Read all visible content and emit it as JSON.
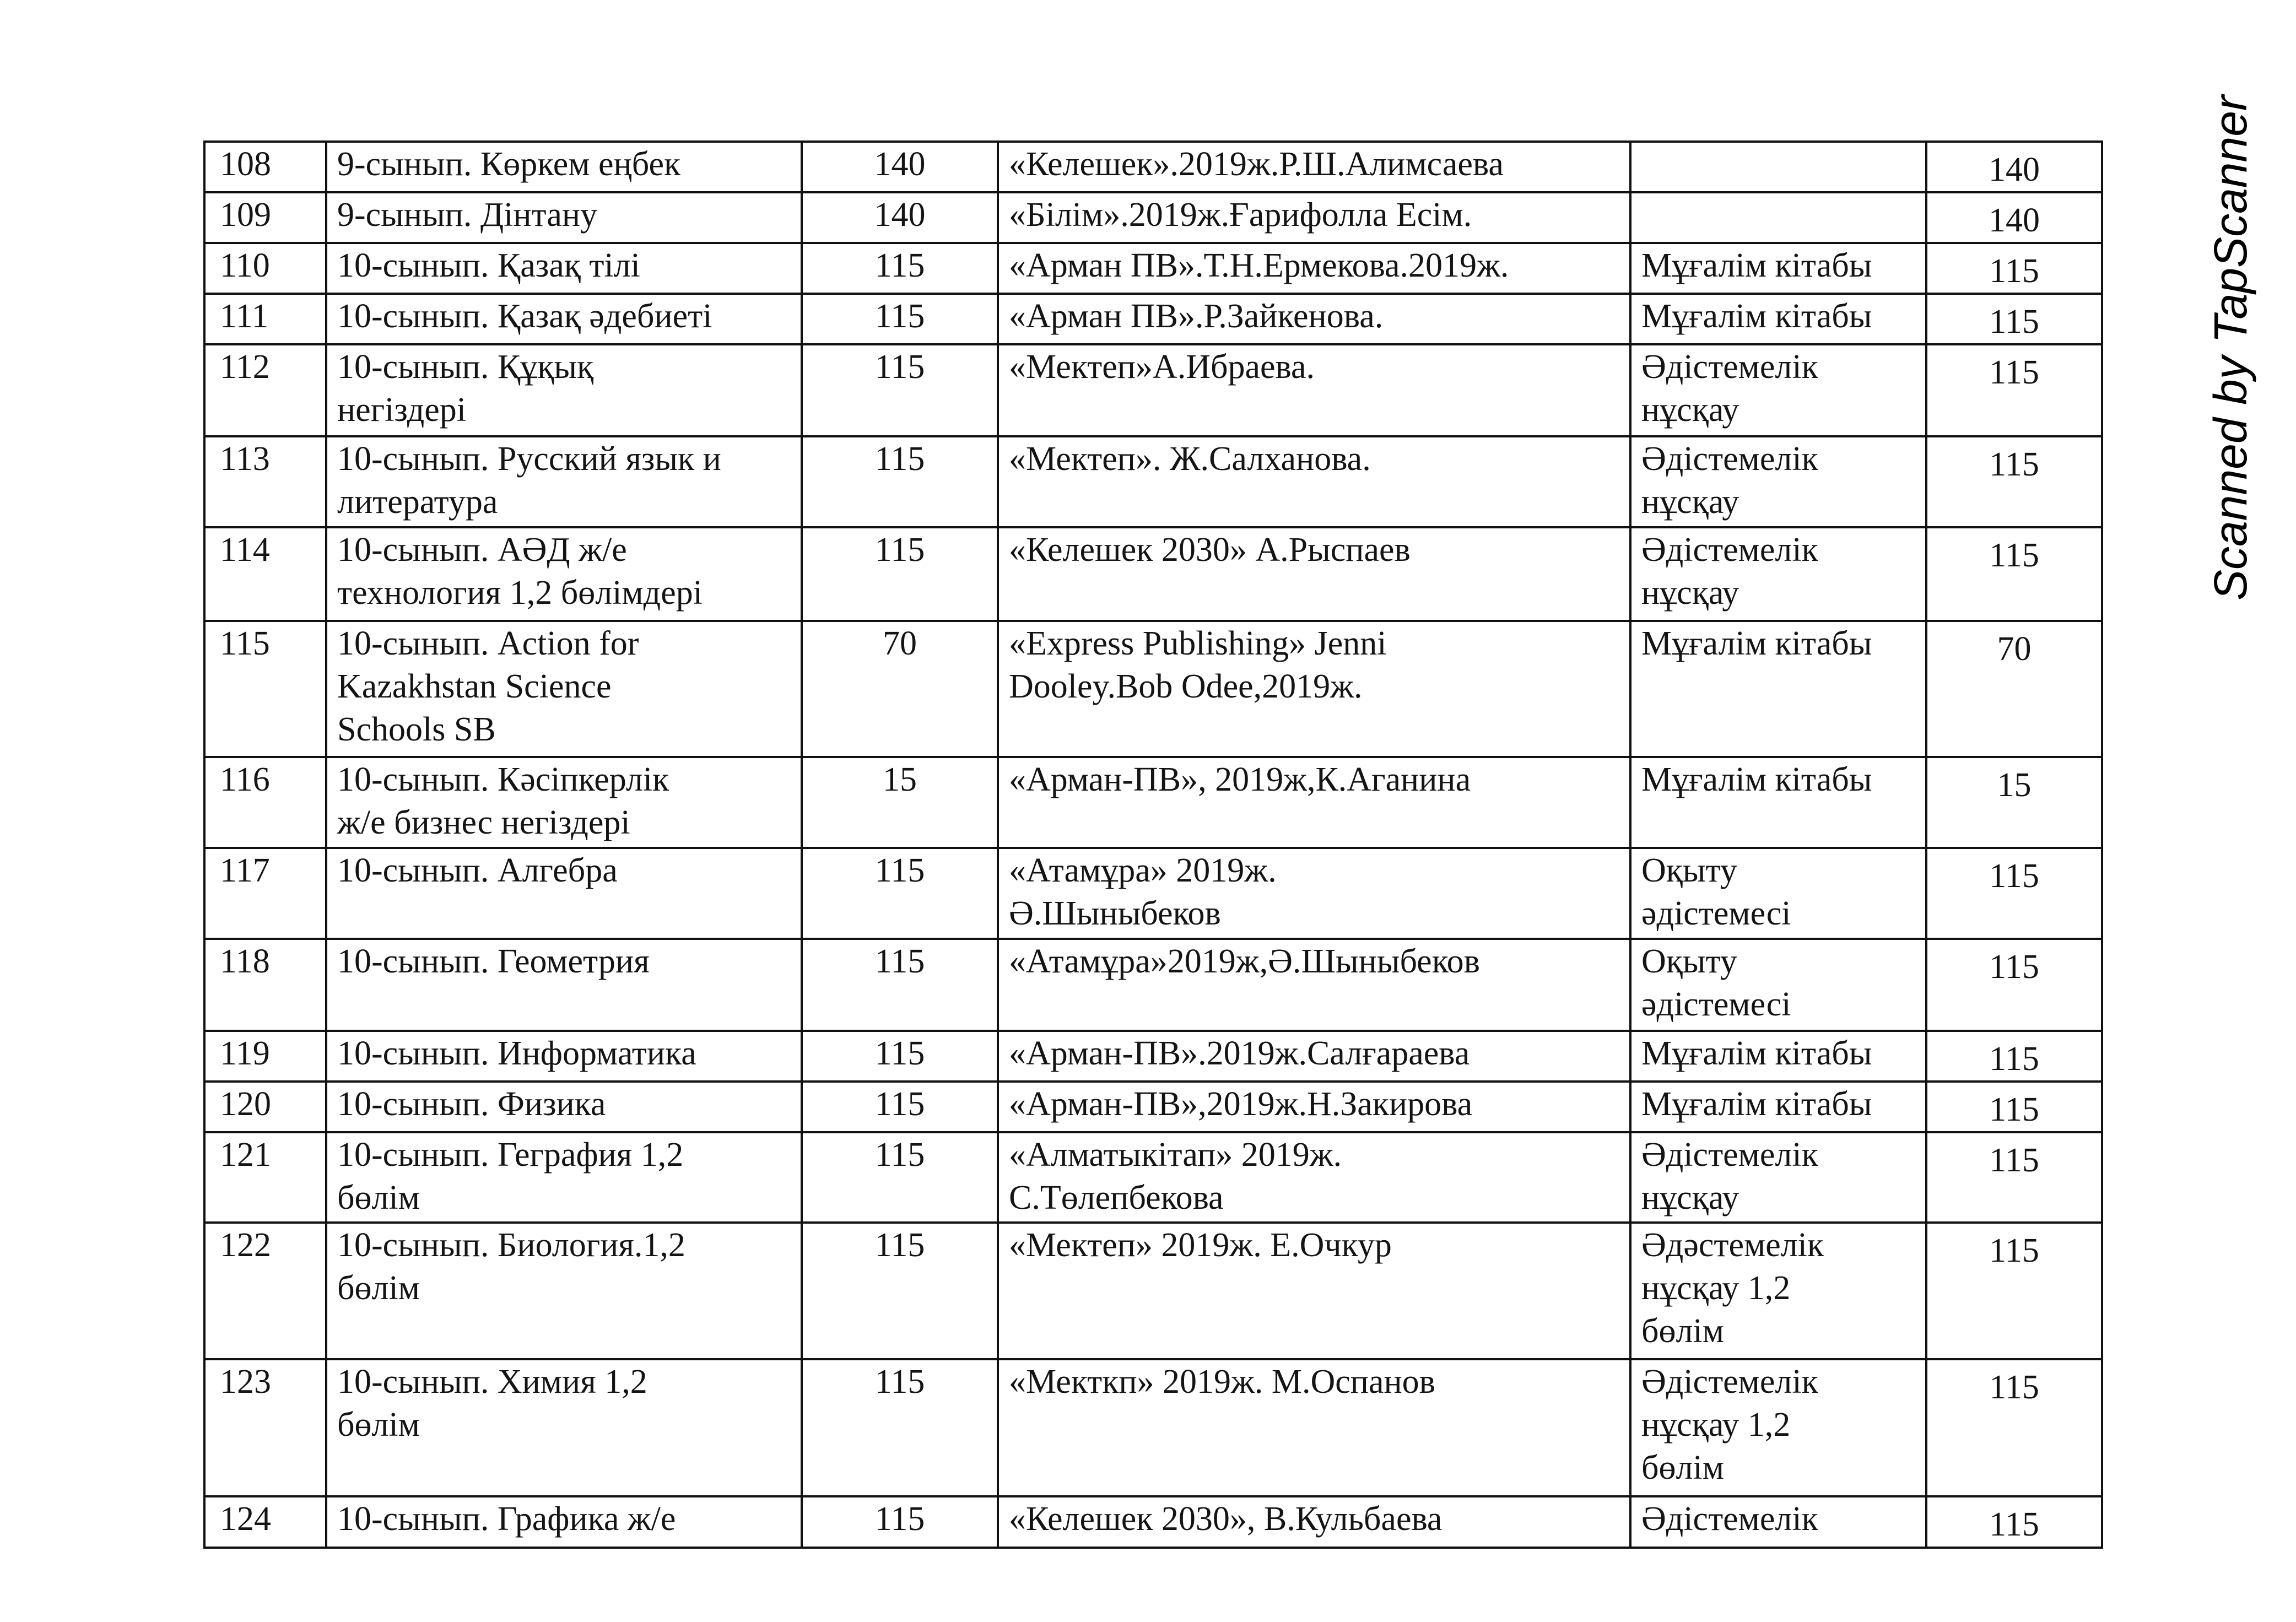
{
  "watermark": "Scanned by TapScanner",
  "rows": [
    {
      "no": "108",
      "subject": "9-сынып. Көркем еңбек",
      "count": "140",
      "publisher": "«Келешек».2019ж.Р.Ш.Алимсаева",
      "type": "",
      "total": "140"
    },
    {
      "no": "109",
      "subject": "9-сынып. Дінтану",
      "count": "140",
      "publisher": "«Білім».2019ж.Ғарифолла Есім.",
      "type": "",
      "total": "140"
    },
    {
      "no": "110",
      "subject": "10-сынып. Қазақ тілі",
      "count": "115",
      "publisher": "«Арман ПВ».Т.Н.Ермекова.2019ж.",
      "type": "Мұғалім кітабы",
      "total": "115"
    },
    {
      "no": "111",
      "subject": "10-сынып. Қазақ әдебиеті",
      "count": "115",
      "publisher": "«Арман ПВ».Р.Зайкенова.",
      "type": "Мұғалім кітабы",
      "total": "115"
    },
    {
      "no": "112",
      "subject": "10-сынып. Құқық\nнегіздері",
      "count": "115",
      "publisher": "«Мектеп»А.Ибраева.",
      "type": "Әдістемелік\nнұсқау",
      "total": "115"
    },
    {
      "no": "113",
      "subject": "10-сынып. Русский язык и\nлитература",
      "count": "115",
      "publisher": "«Мектеп». Ж.Салханова.",
      "type": "Әдістемелік\nнұсқау",
      "total": "115"
    },
    {
      "no": "114",
      "subject": "10-сынып. АӘД ж/е\nтехнология 1,2 бөлімдері",
      "count": "115",
      "publisher": "«Келешек 2030» А.Рыспаев",
      "type": "Әдістемелік\nнұсқау",
      "total": "115"
    },
    {
      "no": "115",
      "subject": "10-сынып. Action for\nKazakhstan Science\nSchools SB",
      "count": "70",
      "publisher": "«Express Publishing» Jenni\nDooley.Bob Odee,2019ж.",
      "type": "Мұғалім кітабы",
      "total": "70"
    },
    {
      "no": "116",
      "subject": "10-сынып. Кәсіпкерлік\nж/е бизнес негіздері",
      "count": "15",
      "publisher": "«Арман-ПВ», 2019ж,К.Аганина",
      "type": "Мұғалім кітабы",
      "total": "15"
    },
    {
      "no": "117",
      "subject": "10-сынып.  Алгебра",
      "count": "115",
      "publisher": "«Атамұра» 2019ж.\nӘ.Шыныбеков",
      "type": "Оқыту\nәдістемесі",
      "total": "115"
    },
    {
      "no": "118",
      "subject": "10-сынып.  Геометрия",
      "count": "115",
      "publisher": "«Атамұра»2019ж,Ә.Шыныбеков",
      "type": "Оқыту\nәдістемесі",
      "total": "115"
    },
    {
      "no": "119",
      "subject": "10-сынып. Информатика",
      "count": "115",
      "publisher": "«Арман-ПВ».2019ж.Салғараева",
      "type": "Мұғалім кітабы",
      "total": "115"
    },
    {
      "no": "120",
      "subject": "10-сынып. Физика",
      "count": "115",
      "publisher": "«Арман-ПВ»,2019ж.Н.Закирова",
      "type": "Мұғалім кітабы",
      "total": "115"
    },
    {
      "no": "121",
      "subject": "10-сынып. Геграфия 1,2\nбөлім",
      "count": "115",
      "publisher": "«Алматыкітап» 2019ж.\nС.Төлепбекова",
      "type": "Әдістемелік\nнұсқау",
      "total": "115"
    },
    {
      "no": "122",
      "subject": "10-сынып. Биология.1,2\nбөлім",
      "count": "115",
      "publisher": "«Мектеп» 2019ж. Е.Очкур",
      "type": "Әдәстемелік\nнұсқау 1,2\nбөлім",
      "total": "115"
    },
    {
      "no": "123",
      "subject": "10-сынып. Химия 1,2\nбөлім",
      "count": "115",
      "publisher": "«Мекткп» 2019ж. М.Оспанов",
      "type": "Әдістемелік\nнұсқау 1,2\nбөлім",
      "total": "115"
    },
    {
      "no": "124",
      "subject": "10-сынып. Графика ж/е",
      "count": "115",
      "publisher": "«Келешек 2030», В.Кульбаева",
      "type": "Әдістемелік",
      "total": "115"
    }
  ]
}
